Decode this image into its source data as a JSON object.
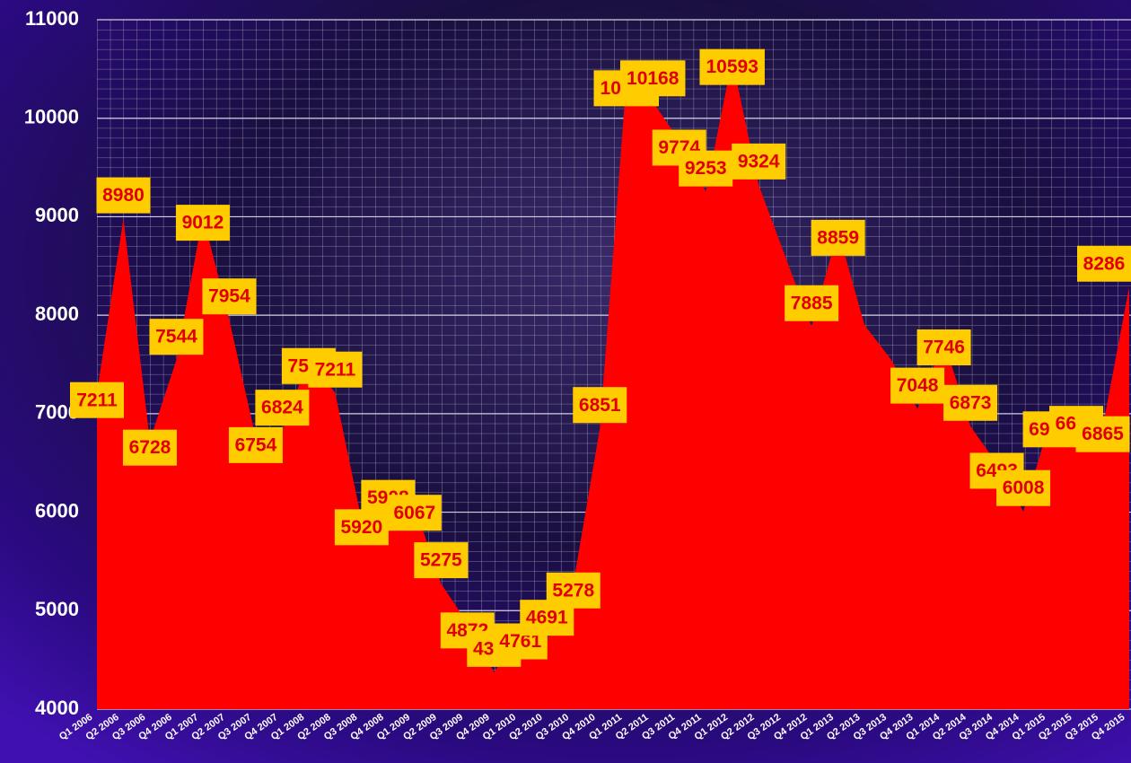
{
  "chart_data": {
    "type": "area",
    "categories": [
      "Q1 2006",
      "Q2 2006",
      "Q3 2006",
      "Q4 2006",
      "Q1 2007",
      "Q2 2007",
      "Q3 2007",
      "Q4 2007",
      "Q1 2008",
      "Q2 2008",
      "Q3 2008",
      "Q4 2008",
      "Q1 2009",
      "Q2 2009",
      "Q3 2009",
      "Q4 2009",
      "Q1 2010",
      "Q2 2010",
      "Q3 2010",
      "Q4 2010",
      "Q1 2011",
      "Q2 2011",
      "Q3 2011",
      "Q4 2011",
      "Q1 2012",
      "Q2 2012",
      "Q3 2012",
      "Q4 2012",
      "Q1 2013",
      "Q2 2013",
      "Q3 2013",
      "Q4 2013",
      "Q1 2014",
      "Q2 2014",
      "Q3 2014",
      "Q4 2014",
      "Q1 2015",
      "Q2 2015",
      "Q3 2015",
      "Q4 2015"
    ],
    "values": [
      7211,
      8980,
      6728,
      7544,
      9012,
      7954,
      6754,
      6824,
      7557,
      7211,
      5920,
      5908,
      6067,
      5275,
      4872,
      4375,
      4761,
      4691,
      5278,
      6851,
      10377,
      10168,
      9774,
      9253,
      10593,
      9324,
      8600,
      7885,
      8859,
      7900,
      7550,
      7048,
      7746,
      6873,
      6493,
      6008,
      6914,
      6660,
      6865,
      8286
    ],
    "value_labels": [
      "7211",
      "8980",
      "6728",
      "7544",
      "9012",
      "7954",
      "6754",
      "6824",
      "7557",
      "7211",
      "5920",
      "5908",
      "6067",
      "5275",
      "4872",
      "4375",
      "4761",
      "4691",
      "5278",
      "6851",
      "10377",
      "10168",
      "9774",
      "9253",
      "10593",
      "9324",
      null,
      "7885",
      "8859",
      null,
      null,
      "7048",
      "7746",
      "6873",
      "6493",
      "6008",
      "6914",
      "6660",
      "6865",
      "8286"
    ],
    "color": "#ff0000",
    "label_color": "#ffcc00",
    "ylim": [
      4000,
      11000
    ],
    "yticks": [
      4000,
      5000,
      6000,
      7000,
      8000,
      9000,
      10000,
      11000
    ],
    "grid": true
  }
}
